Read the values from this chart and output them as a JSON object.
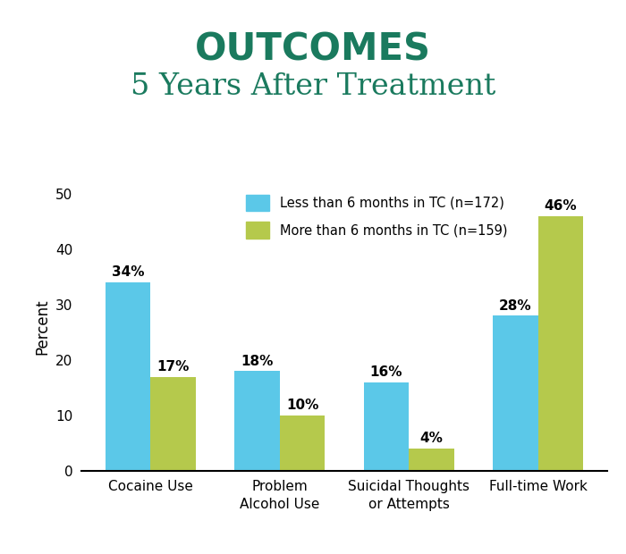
{
  "title_line1": "OUTCOMES",
  "title_line2": "5 Years After Treatment",
  "title_color": "#1a7a5e",
  "categories": [
    "Cocaine Use",
    "Problem\nAlcohol Use",
    "Suicidal Thoughts\nor Attempts",
    "Full-time Work"
  ],
  "blue_values": [
    34,
    18,
    16,
    28
  ],
  "green_values": [
    17,
    10,
    4,
    46
  ],
  "blue_color": "#5bc8e8",
  "green_color": "#b5c94c",
  "blue_label": "Less than 6 months in TC (n=172)",
  "green_label": "More than 6 months in TC (n=159)",
  "ylabel": "Percent",
  "ylim": [
    0,
    52
  ],
  "yticks": [
    0,
    10,
    20,
    30,
    40,
    50
  ],
  "bar_width": 0.35,
  "background_color": "#ffffff",
  "xtick_fontsize": 11,
  "ytick_fontsize": 11,
  "ylabel_fontsize": 12,
  "title1_fontsize": 30,
  "title2_fontsize": 24,
  "legend_fontsize": 10.5,
  "bar_label_fontsize": 11
}
